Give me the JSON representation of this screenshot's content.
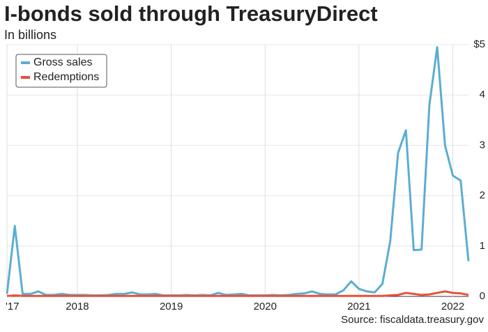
{
  "chart_data": {
    "type": "line",
    "title": "I-bonds sold through TreasuryDirect",
    "subtitle": "In billions",
    "source": "Source: fiscaldata.treasury.gov",
    "categories": [
      "'17",
      null,
      null,
      null,
      null,
      null,
      null,
      null,
      null,
      "2018",
      null,
      null,
      null,
      null,
      null,
      null,
      null,
      null,
      null,
      null,
      null,
      "2019",
      null,
      null,
      null,
      null,
      null,
      null,
      null,
      null,
      null,
      null,
      null,
      "2020",
      null,
      null,
      null,
      null,
      null,
      null,
      null,
      null,
      null,
      null,
      null,
      "2021",
      null,
      null,
      null,
      null,
      null,
      null,
      null,
      null,
      null,
      null,
      null,
      "2022",
      null,
      null
    ],
    "series": [
      {
        "name": "Gross sales",
        "color": "#5aaed1",
        "values": [
          0.05,
          1.4,
          0.05,
          0.05,
          0.1,
          0.03,
          0.03,
          0.05,
          0.03,
          0.03,
          0.03,
          0.02,
          0.02,
          0.03,
          0.05,
          0.05,
          0.08,
          0.04,
          0.04,
          0.05,
          0.02,
          0.02,
          0.02,
          0.03,
          0.02,
          0.03,
          0.02,
          0.07,
          0.03,
          0.04,
          0.05,
          0.02,
          0.02,
          0.02,
          0.03,
          0.02,
          0.03,
          0.05,
          0.06,
          0.1,
          0.05,
          0.04,
          0.04,
          0.12,
          0.3,
          0.15,
          0.1,
          0.08,
          0.25,
          1.1,
          2.85,
          3.3,
          0.92,
          0.93,
          3.8,
          4.95,
          3.0,
          2.4,
          2.3,
          0.7
        ]
      },
      {
        "name": "Redemptions",
        "color": "#e8503a",
        "values": [
          0.01,
          0.02,
          0.01,
          0.01,
          0.01,
          0.01,
          0.01,
          0.01,
          0.01,
          0.01,
          0.01,
          0.01,
          0.01,
          0.01,
          0.01,
          0.01,
          0.01,
          0.01,
          0.01,
          0.01,
          0.01,
          0.01,
          0.01,
          0.01,
          0.01,
          0.01,
          0.01,
          0.01,
          0.01,
          0.01,
          0.01,
          0.01,
          0.01,
          0.01,
          0.01,
          0.01,
          0.01,
          0.01,
          0.01,
          0.01,
          0.01,
          0.01,
          0.01,
          0.01,
          0.01,
          0.01,
          0.01,
          0.01,
          0.01,
          0.02,
          0.03,
          0.07,
          0.05,
          0.03,
          0.04,
          0.07,
          0.1,
          0.07,
          0.06,
          0.03
        ]
      }
    ],
    "ylim": [
      0,
      5
    ],
    "yticks": [
      0,
      1,
      2,
      3,
      4,
      {
        "value": 5,
        "label": "$5"
      }
    ],
    "grid": true,
    "legend": "upper-left"
  }
}
